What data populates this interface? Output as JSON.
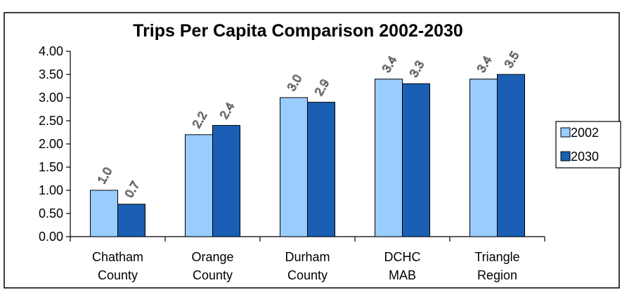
{
  "chart_data": {
    "type": "bar",
    "title": "Trips Per Capita Comparison 2002-2030",
    "categories": [
      [
        "Chatham",
        "County"
      ],
      [
        "Orange",
        "County"
      ],
      [
        "Durham",
        "County"
      ],
      [
        "DCHC",
        "MAB"
      ],
      [
        "Triangle",
        "Region"
      ]
    ],
    "series": [
      {
        "name": "2002",
        "color": "#99ccff",
        "values": [
          1.0,
          2.2,
          3.0,
          3.4,
          3.4
        ],
        "labels": [
          "1.0",
          "2.2",
          "3.0",
          "3.4",
          "3.4"
        ]
      },
      {
        "name": "2030",
        "color": "#1a5fb4",
        "values": [
          0.7,
          2.4,
          2.9,
          3.3,
          3.5
        ],
        "labels": [
          "0.7",
          "2.4",
          "2.9",
          "3.3",
          "3.5"
        ]
      }
    ],
    "yticks": [
      "0.00",
      "0.50",
      "1.00",
      "1.50",
      "2.00",
      "2.50",
      "3.00",
      "3.50",
      "4.00"
    ],
    "ylim": [
      0,
      4
    ],
    "xlabel": "",
    "ylabel": "",
    "grid": false,
    "legend_position": "right"
  }
}
